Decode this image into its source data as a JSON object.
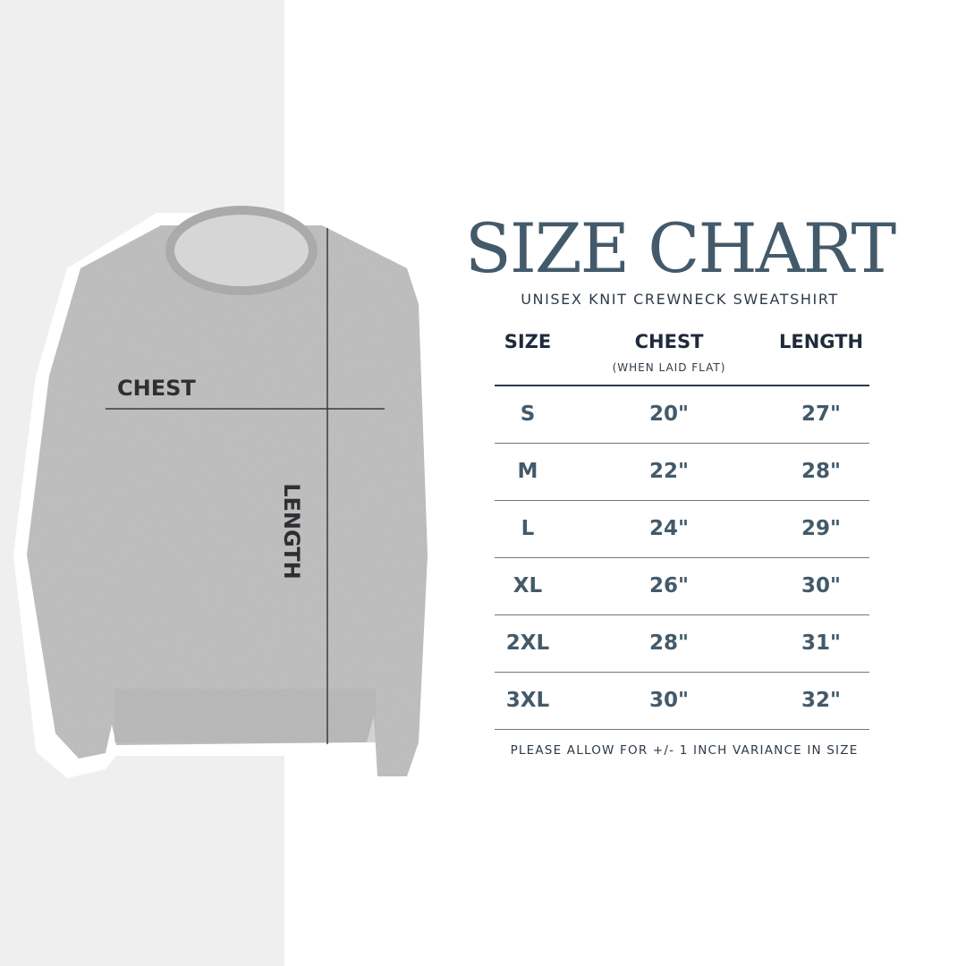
{
  "title": "SIZE CHART",
  "subtitle": "UNISEX KNIT CREWNECK SWEATSHIRT",
  "diagram": {
    "chest_label": "CHEST",
    "length_label": "LENGTH"
  },
  "table": {
    "headers": {
      "size": "SIZE",
      "chest": "CHEST",
      "chest_note": "(WHEN LAID FLAT)",
      "length": "LENGTH"
    },
    "rows": [
      {
        "size": "S",
        "chest": "20\"",
        "length": "27\""
      },
      {
        "size": "M",
        "chest": "22\"",
        "length": "28\""
      },
      {
        "size": "L",
        "chest": "24\"",
        "length": "29\""
      },
      {
        "size": "XL",
        "chest": "26\"",
        "length": "30\""
      },
      {
        "size": "2XL",
        "chest": "28\"",
        "length": "31\""
      },
      {
        "size": "3XL",
        "chest": "30\"",
        "length": "32\""
      }
    ]
  },
  "footer": "PLEASE ALLOW FOR +/- 1 INCH VARIANCE IN SIZE",
  "colors": {
    "accent": "#435a6a",
    "heading": "#1f2a3a",
    "panel": "#efefef",
    "garment": "#bdbdbd"
  }
}
